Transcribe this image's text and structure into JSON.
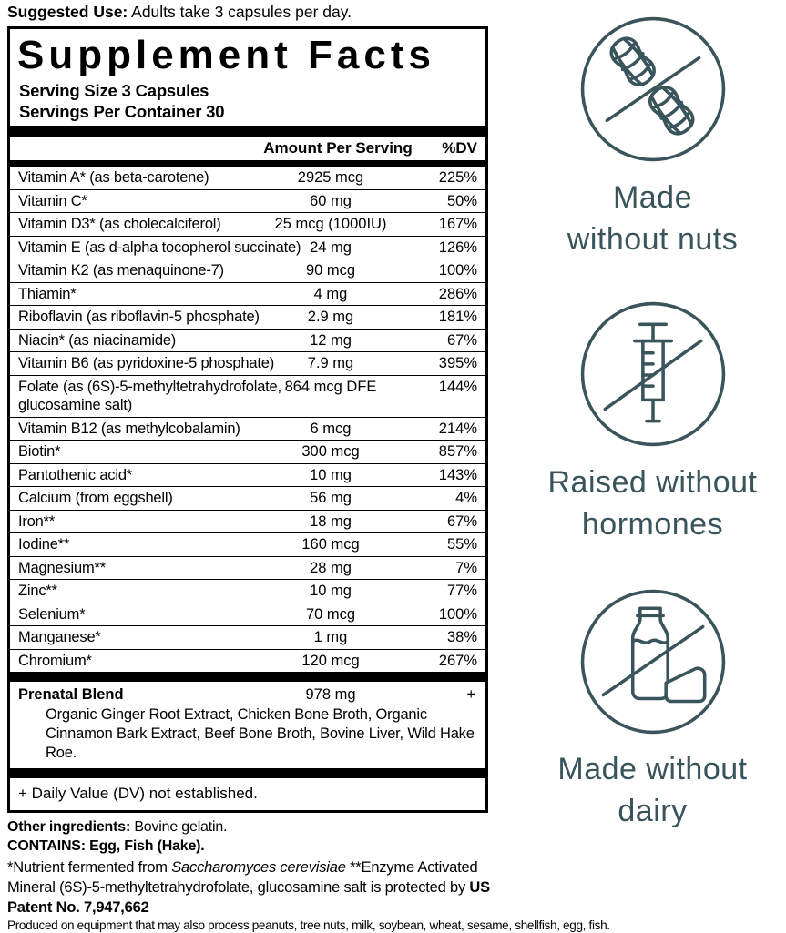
{
  "suggested_use": {
    "label": "Suggested Use:",
    "text": " Adults take 3 capsules per day."
  },
  "supplement_facts": {
    "title": "Supplement Facts",
    "serving_size": "Serving Size 3 Capsules",
    "servings_per_container": "Servings Per Container 30",
    "amount_header": "Amount Per Serving",
    "dv_header": "%DV",
    "rows": [
      {
        "name": "Vitamin A* (as beta-carotene)",
        "amount": "2925 mcg",
        "dv": "225%"
      },
      {
        "name": "Vitamin C*",
        "amount": "60 mg",
        "dv": "50%"
      },
      {
        "name": "Vitamin D3* (as cholecalciferol)",
        "amount": "25 mcg (1000IU)",
        "dv": "167%"
      },
      {
        "name": "Vitamin E (as d-alpha tocopherol succinate)",
        "amount": "24 mg",
        "dv": "126%"
      },
      {
        "name": "Vitamin K2 (as menaquinone-7)",
        "amount": "90 mcg",
        "dv": "100%"
      },
      {
        "name": "Thiamin*",
        "amount": "4 mg",
        "dv": "286%"
      },
      {
        "name": "Riboflavin (as riboflavin-5 phosphate)",
        "amount": "2.9 mg",
        "dv": "181%"
      },
      {
        "name": "Niacin* (as niacinamide)",
        "amount": "12 mg",
        "dv": "67%"
      },
      {
        "name": "Vitamin B6 (as pyridoxine-5 phosphate)",
        "amount": "7.9 mg",
        "dv": "395%"
      },
      {
        "name": "Folate (as (6S)-5-methyltetrahydrofolate,",
        "name_line2": "glucosamine salt)",
        "amount": "864 mcg DFE",
        "dv": "144%"
      },
      {
        "name": "Vitamin B12 (as methylcobalamin)",
        "amount": "6 mcg",
        "dv": "214%"
      },
      {
        "name": "Biotin*",
        "amount": "300 mcg",
        "dv": "857%"
      },
      {
        "name": "Pantothenic acid*",
        "amount": "10 mg",
        "dv": "143%"
      },
      {
        "name": "Calcium (from eggshell)",
        "amount": "56 mg",
        "dv": "4%"
      },
      {
        "name": "Iron**",
        "amount": "18 mg",
        "dv": "67%"
      },
      {
        "name": "Iodine**",
        "amount": "160 mcg",
        "dv": "55%"
      },
      {
        "name": "Magnesium**",
        "amount": "28 mg",
        "dv": "7%"
      },
      {
        "name": "Zinc**",
        "amount": "10 mg",
        "dv": "77%"
      },
      {
        "name": "Selenium*",
        "amount": "70 mcg",
        "dv": "100%"
      },
      {
        "name": "Manganese*",
        "amount": "1 mg",
        "dv": "38%"
      },
      {
        "name": "Chromium*",
        "amount": "120 mcg",
        "dv": "267%"
      }
    ],
    "blend": {
      "name": "Prenatal Blend",
      "amount": "978 mg",
      "dv": "+",
      "description": "Organic Ginger Root Extract, Chicken Bone Broth, Organic Cinnamon Bark Extract, Beef Bone Broth, Bovine Liver, Wild Hake Roe."
    },
    "dv_footnote": "+ Daily Value (DV) not established."
  },
  "footer": {
    "other_ingredients_label": "Other ingredients:",
    "other_ingredients_value": " Bovine gelatin.",
    "contains": "CONTAINS: Egg, Fish (Hake).",
    "footnote_part1": "*Nutrient fermented from ",
    "footnote_italic": "Saccharomyces cerevisiae",
    "footnote_part2": "  **Enzyme Activated Mineral (6S)-5-methyltetrahydrofolate, glucosamine salt is protected by ",
    "footnote_bold": "US Patent No. 7,947,662",
    "allergen_note": "Produced on equipment that may also process peanuts, tree nuts, milk, soybean, wheat, sesame, shellfish, egg, fish."
  },
  "badges": [
    {
      "icon": "no-nuts-icon",
      "line1": "Made",
      "line2": "without nuts"
    },
    {
      "icon": "no-hormones-icon",
      "line1": "Raised without",
      "line2": "hormones"
    },
    {
      "icon": "no-dairy-icon",
      "line1": "Made without",
      "line2": "dairy"
    }
  ],
  "colors": {
    "accent": "#3a545c",
    "text": "#000000",
    "background": "#ffffff"
  }
}
